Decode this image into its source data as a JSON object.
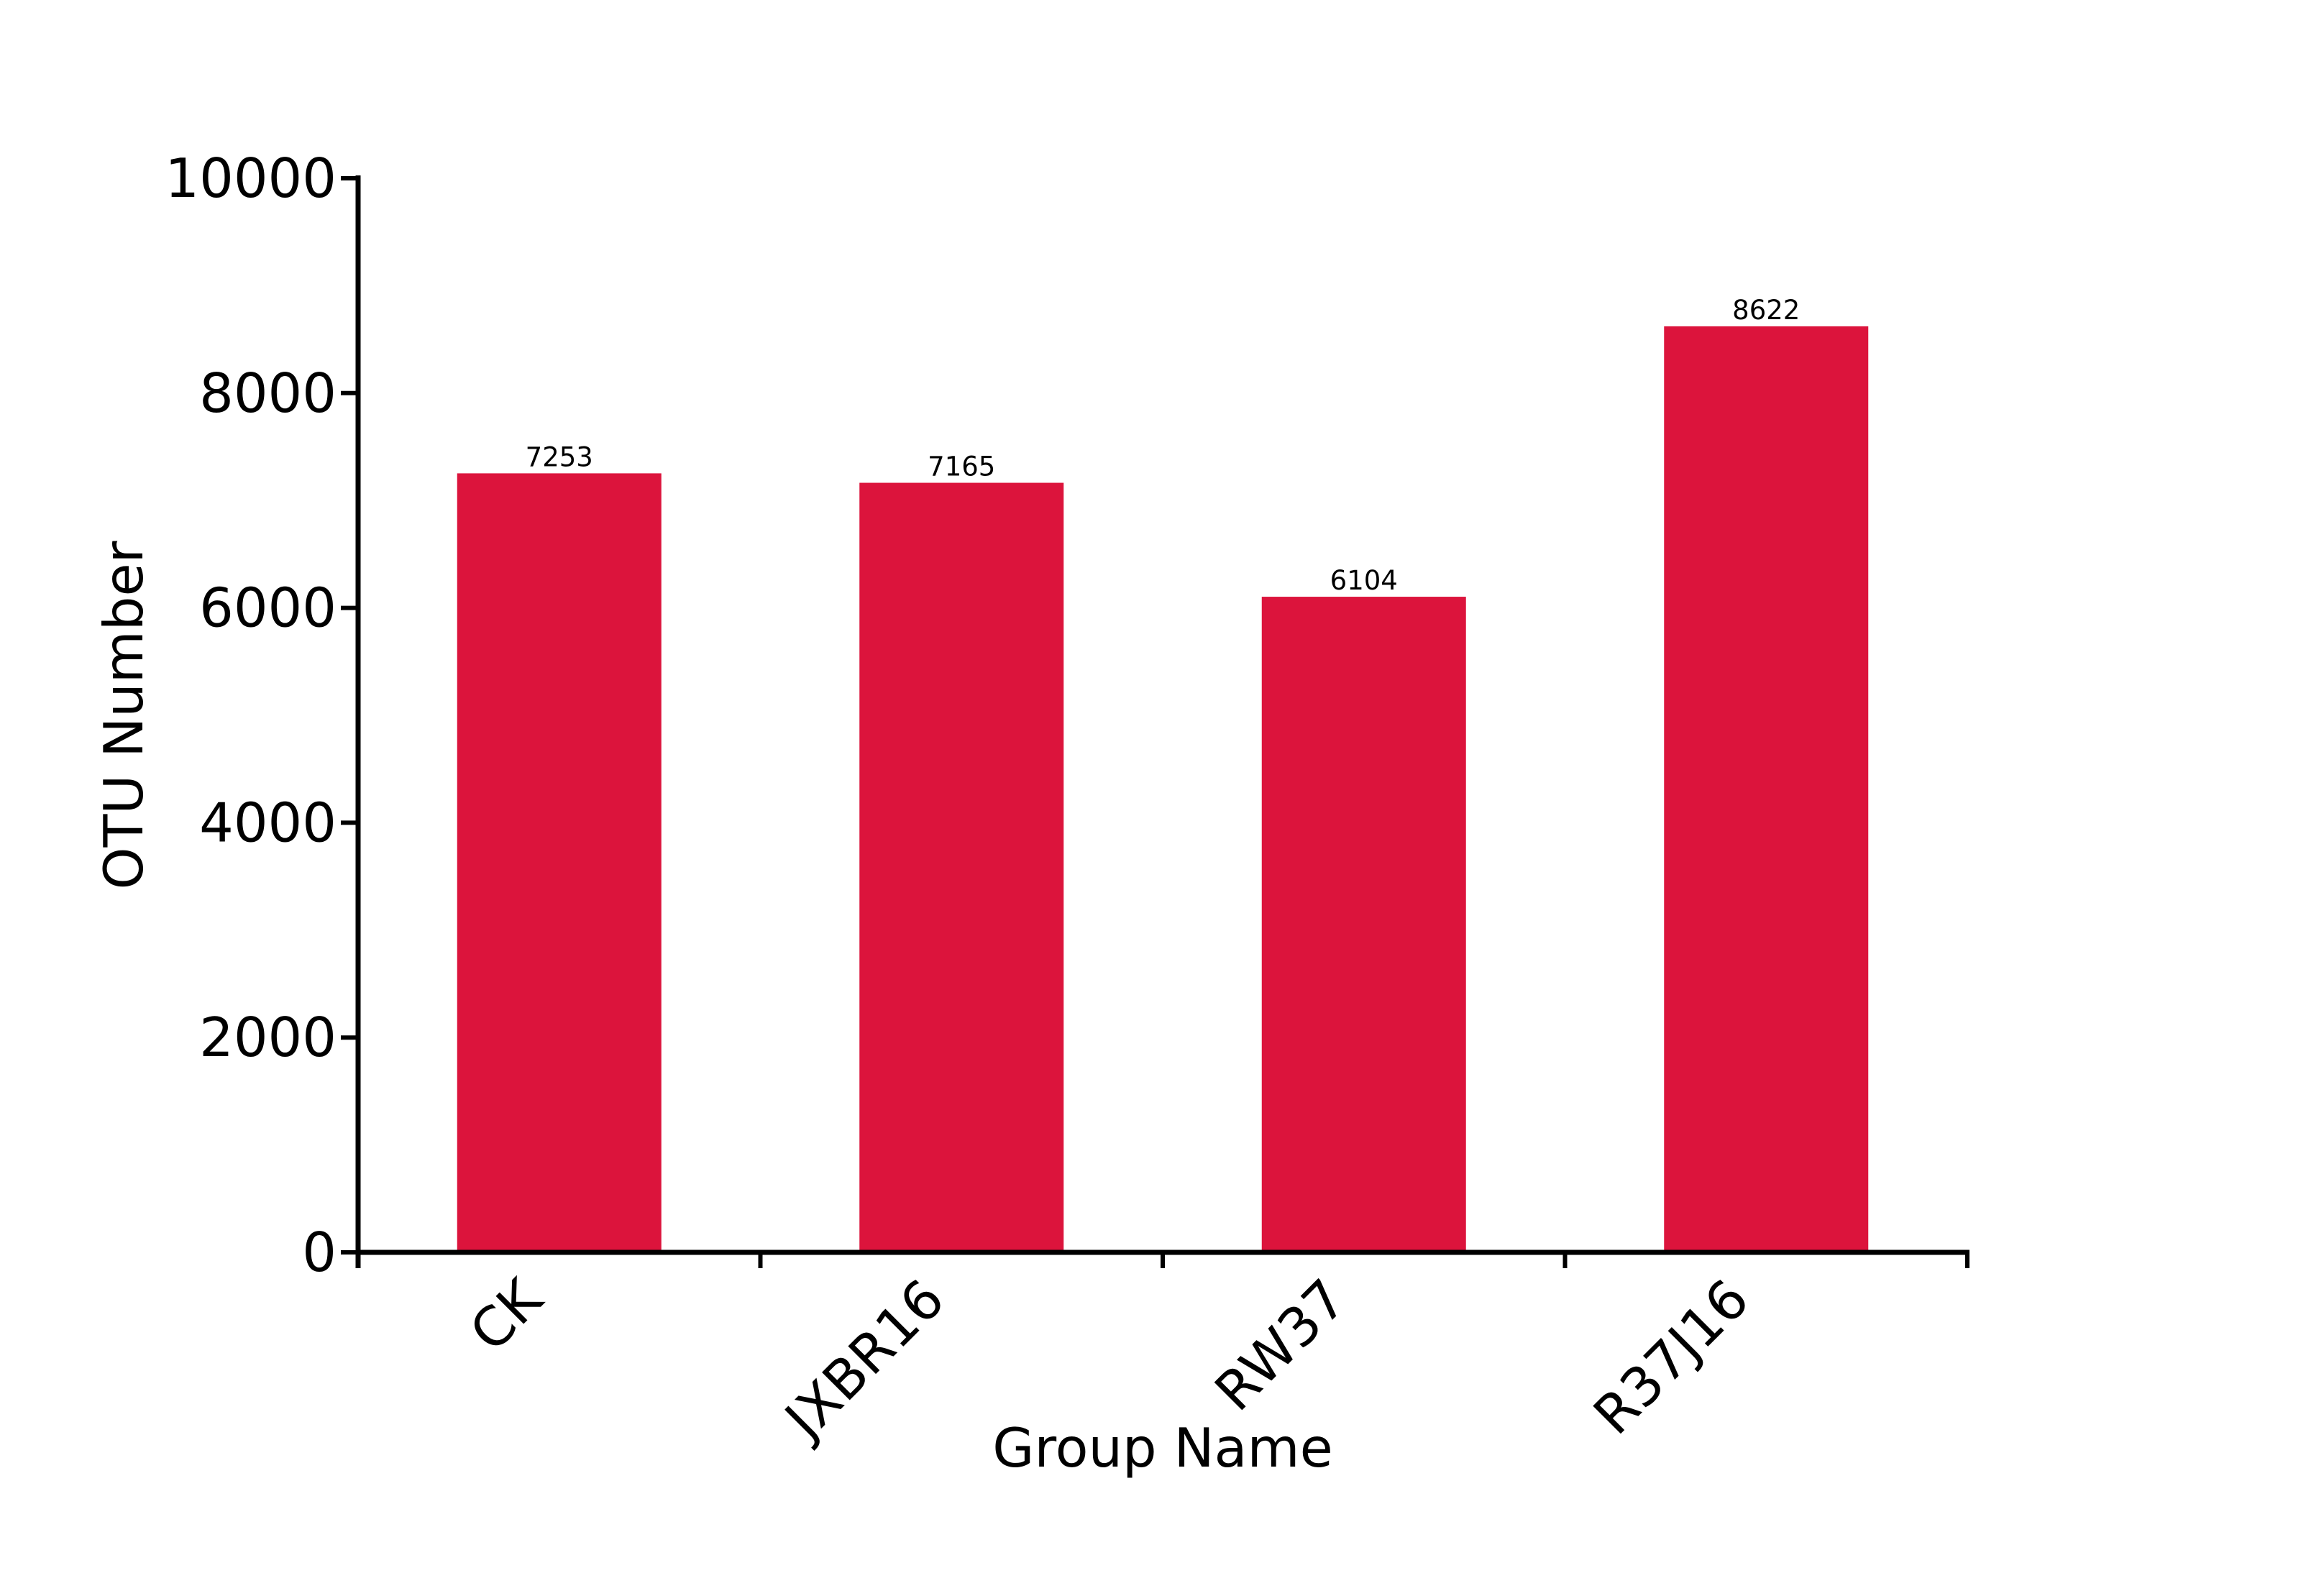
{
  "chart_data": {
    "type": "bar",
    "categories": [
      "CK",
      "JXBR16",
      "RW37",
      "R37J16"
    ],
    "values": [
      7253,
      7165,
      6104,
      8622
    ],
    "data_labels": [
      "7253",
      "7165",
      "6104",
      "8622"
    ],
    "xlabel": "Group Name",
    "ylabel": "OTU Number",
    "ylim": [
      0,
      10000
    ],
    "yticks": [
      0,
      2000,
      4000,
      6000,
      8000,
      10000
    ],
    "ytick_labels": [
      "0",
      "2000",
      "4000",
      "6000",
      "8000",
      "10000"
    ],
    "bar_color": "#DC143C",
    "grid": false,
    "legend": "none"
  }
}
